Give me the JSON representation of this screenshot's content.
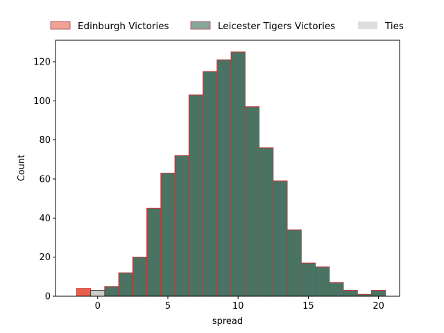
{
  "chart_data": {
    "type": "bar",
    "title": "",
    "xlabel": "spread",
    "ylabel": "Count",
    "xlim": [
      -3,
      21.5
    ],
    "ylim": [
      0,
      131
    ],
    "xticks": [
      0,
      5,
      10,
      15,
      20
    ],
    "yticks": [
      0,
      20,
      40,
      60,
      80,
      100,
      120
    ],
    "grid": false,
    "legend_position": "top",
    "bin_width": 1,
    "series": [
      {
        "name": "Edinburgh Victories",
        "color": "#e8604c",
        "legend_color": "#f1a295",
        "edge_color": "#cc3333",
        "bins": [
          {
            "x0": -1.5,
            "x1": -0.5,
            "count": 4
          }
        ]
      },
      {
        "name": "Leicester Tigers Victories",
        "color": "#4a7364",
        "legend_color": "#87a69a",
        "edge_color": "#cc3333",
        "bins": [
          {
            "x0": 0.5,
            "x1": 1.5,
            "count": 5
          },
          {
            "x0": 1.5,
            "x1": 2.5,
            "count": 12
          },
          {
            "x0": 2.5,
            "x1": 3.5,
            "count": 20
          },
          {
            "x0": 3.5,
            "x1": 4.5,
            "count": 45
          },
          {
            "x0": 4.5,
            "x1": 5.5,
            "count": 63
          },
          {
            "x0": 5.5,
            "x1": 6.5,
            "count": 72
          },
          {
            "x0": 6.5,
            "x1": 7.5,
            "count": 103
          },
          {
            "x0": 7.5,
            "x1": 8.5,
            "count": 115
          },
          {
            "x0": 8.5,
            "x1": 9.5,
            "count": 121
          },
          {
            "x0": 9.5,
            "x1": 10.5,
            "count": 125
          },
          {
            "x0": 10.5,
            "x1": 11.5,
            "count": 97
          },
          {
            "x0": 11.5,
            "x1": 12.5,
            "count": 76
          },
          {
            "x0": 12.5,
            "x1": 13.5,
            "count": 59
          },
          {
            "x0": 13.5,
            "x1": 14.5,
            "count": 34
          },
          {
            "x0": 14.5,
            "x1": 15.5,
            "count": 17
          },
          {
            "x0": 15.5,
            "x1": 16.5,
            "count": 15
          },
          {
            "x0": 16.5,
            "x1": 17.5,
            "count": 7
          },
          {
            "x0": 17.5,
            "x1": 18.5,
            "count": 3
          },
          {
            "x0": 18.5,
            "x1": 19.5,
            "count": 1
          },
          {
            "x0": 19.5,
            "x1": 20.5,
            "count": 3
          }
        ]
      },
      {
        "name": "Ties",
        "color": "#cccccc",
        "legend_color": "#dddddd",
        "edge_color": "#444444",
        "bins": [
          {
            "x0": -0.5,
            "x1": 0.5,
            "count": 3
          }
        ]
      }
    ]
  }
}
